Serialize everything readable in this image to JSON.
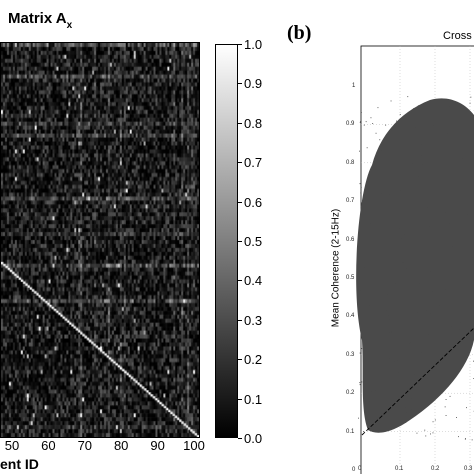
{
  "chart_data": [
    {
      "type": "heatmap",
      "title": "Matrix A",
      "title_subscript": "x",
      "xlabel": "ent ID",
      "xticks": [
        50,
        60,
        70,
        80,
        90,
        100
      ],
      "colorbar_ticks": [
        "1.0",
        "0.9",
        "0.8",
        "0.7",
        "0.6",
        "0.5",
        "0.4",
        "0.3",
        "0.2",
        "0.1",
        "0.0"
      ],
      "colorbar_range": [
        0.0,
        1.0
      ],
      "colormap": "gray",
      "diagonal_value": 1.0,
      "background_value_range": [
        0.0,
        0.35
      ]
    },
    {
      "type": "scatter",
      "panel_letter": "(b)",
      "title": "Cross",
      "ylabel": "Mean Coherence (2-15Hz)",
      "ylim": [
        0,
        1
      ],
      "yticks": [
        "1",
        "0.9",
        "0.8",
        "0.7",
        "0.6",
        "0.5",
        "0.4",
        "0.3",
        "0.2",
        "0.1",
        "0"
      ],
      "xticks": [
        "0",
        "0.1",
        "0.2",
        "0.3"
      ],
      "point_color": "#4a4a4a",
      "reference_line": "identity (dashed)"
    }
  ]
}
